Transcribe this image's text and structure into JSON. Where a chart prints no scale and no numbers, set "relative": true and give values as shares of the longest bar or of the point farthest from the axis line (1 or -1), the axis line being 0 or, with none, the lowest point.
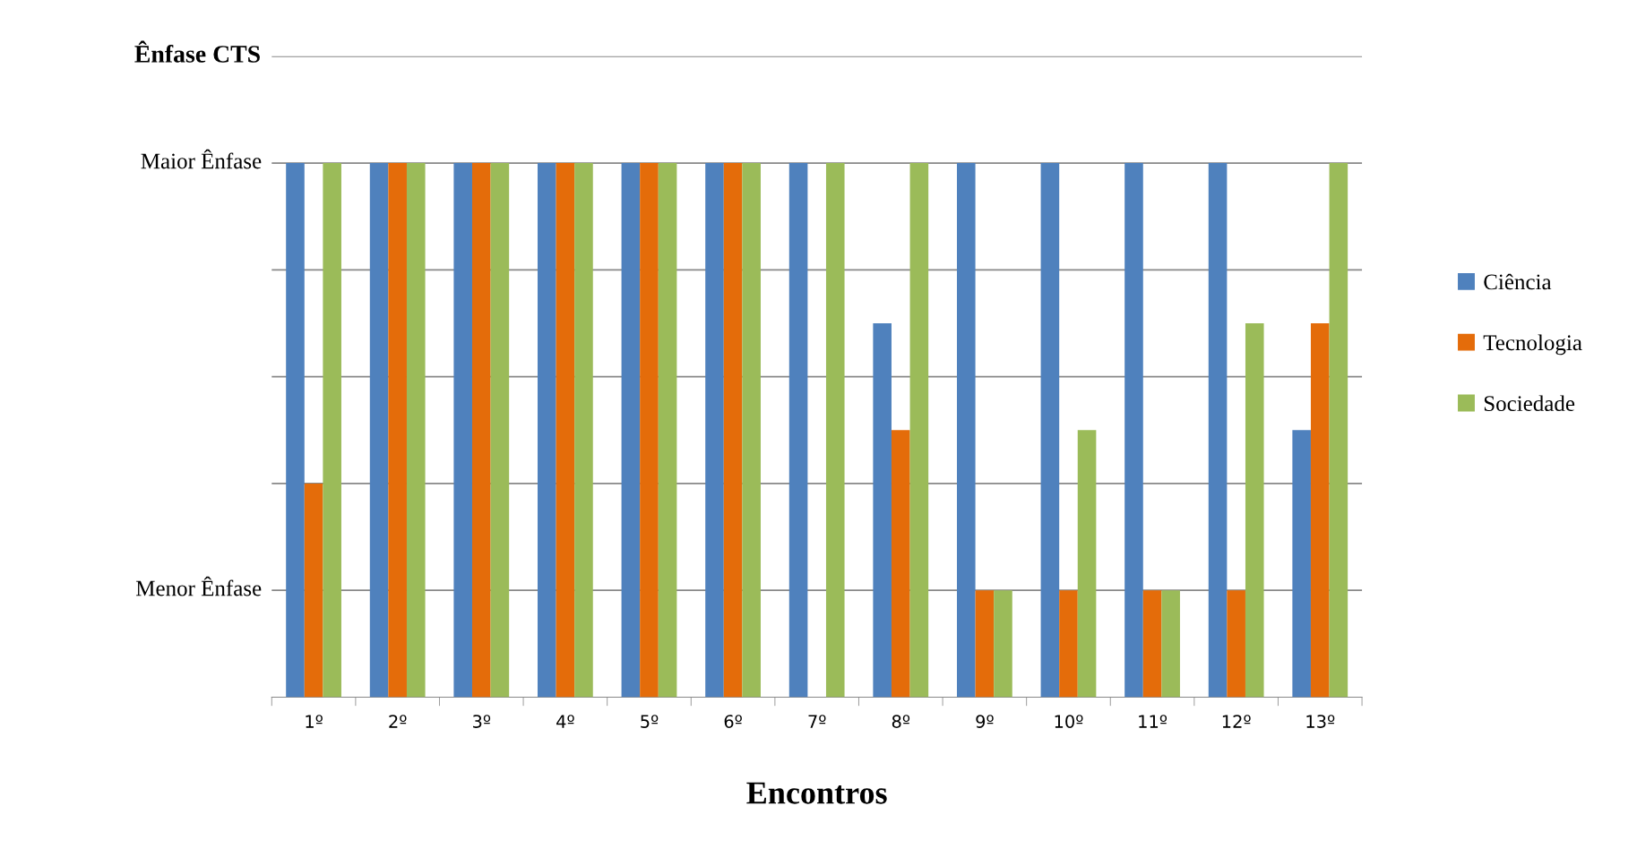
{
  "chart_data": {
    "type": "bar",
    "ylabel": "Ênfase CTS",
    "xlabel": "Encontros",
    "relative": true,
    "categories": [
      "1º",
      "2º",
      "3º",
      "4º",
      "5º",
      "6º",
      "7º",
      "8º",
      "9º",
      "10º",
      "11º",
      "12º",
      "13º"
    ],
    "series": [
      {
        "name": "Ciência",
        "color": "#4f81bd",
        "values": [
          1,
          1,
          1,
          1,
          1,
          1,
          1,
          0.7,
          1,
          1,
          1,
          1,
          0.5
        ]
      },
      {
        "name": "Tecnologia",
        "color": "#e46c0a",
        "values": [
          0.4,
          1,
          1,
          1,
          1,
          1,
          0,
          0.5,
          0.2,
          0.2,
          0.2,
          0.2,
          0.7
        ]
      },
      {
        "name": "Sociedade",
        "color": "#9bbb59",
        "values": [
          1,
          1,
          1,
          1,
          1,
          1,
          1,
          1,
          0.2,
          0.5,
          0.2,
          0.7,
          1
        ]
      }
    ],
    "ref_lines": [
      {
        "axis": "y",
        "value": 0.2,
        "label": "Menor Ênfase",
        "color": "#888888"
      },
      {
        "axis": "y",
        "value": 0.4,
        "color": "#888888"
      },
      {
        "axis": "y",
        "value": 0.6,
        "color": "#888888"
      },
      {
        "axis": "y",
        "value": 0.8,
        "color": "#888888"
      },
      {
        "axis": "y",
        "value": 1.0,
        "label": "Maior Ênfase",
        "color": "#888888"
      },
      {
        "axis": "y",
        "value": 1.2,
        "color": "#888888"
      }
    ],
    "legend": "right"
  }
}
